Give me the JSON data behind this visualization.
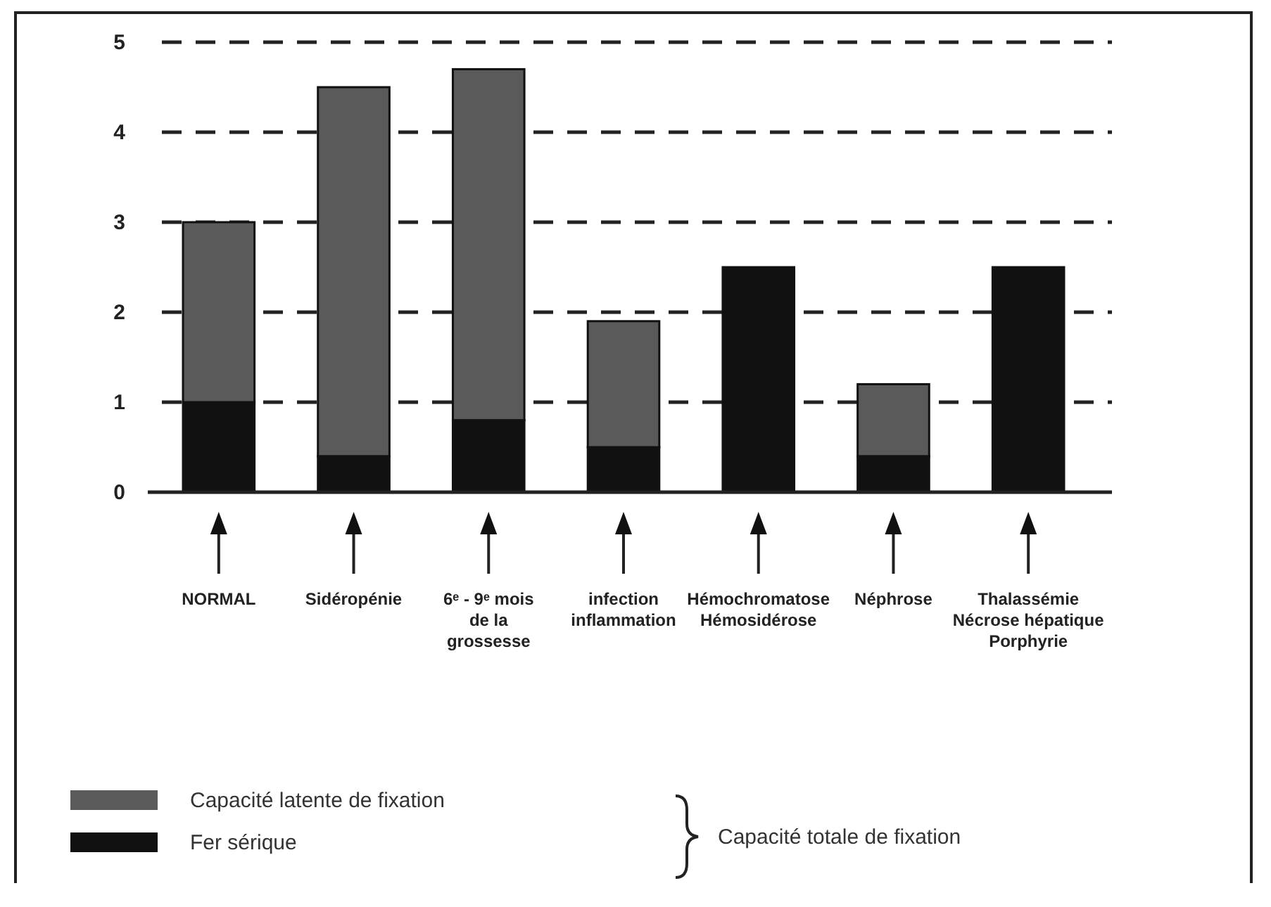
{
  "chart_data": {
    "type": "bar",
    "stacked": true,
    "categories": [
      "NORMAL",
      "Sidéropénie",
      "6ᵉ - 9ᵉ mois\nde la\ngrossesse",
      "infection\ninflammation",
      "Hémochromatose\nHémosidérose",
      "Néphrose",
      "Thalassémie\nNécrose hépatique\nPorphyrie"
    ],
    "series": [
      {
        "name": "Fer sérique",
        "color": "#111111",
        "values": [
          1,
          0.4,
          0.8,
          0.5,
          2.5,
          0.4,
          2.5
        ]
      },
      {
        "name": "Capacité latente de fixation",
        "color": "#5a5a5a",
        "values": [
          2,
          4.1,
          3.9,
          1.4,
          null,
          0.8,
          null
        ]
      }
    ],
    "ylim": [
      0,
      5
    ],
    "yticks": [
      0,
      1,
      2,
      3,
      4,
      5
    ],
    "grid": "y",
    "line_style": "dashed",
    "legend": "bottom left",
    "annotations": [
      "Capacité totale de fixation"
    ]
  }
}
